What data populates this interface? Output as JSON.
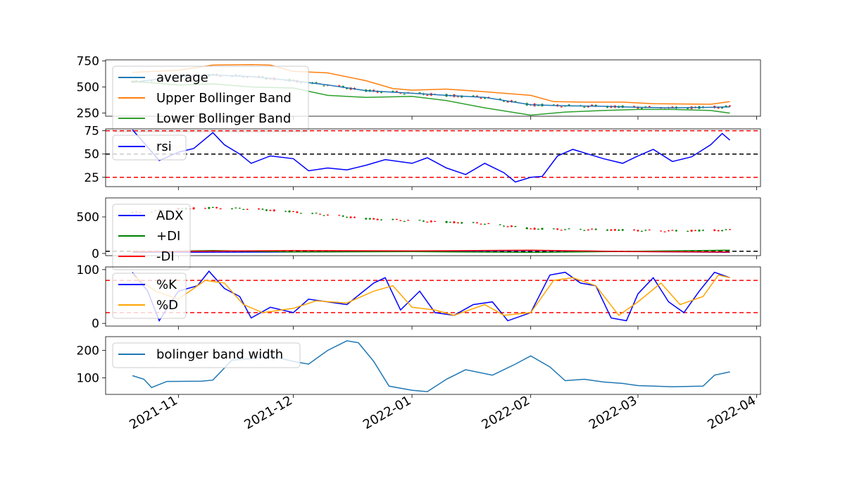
{
  "x_ticks": [
    "2021-11",
    "2021-12",
    "2022-01",
    "2022-02",
    "2022-03",
    "2022-04"
  ],
  "chart_data": [
    {
      "type": "line",
      "panel": "bollinger",
      "ylim": [
        220,
        760
      ],
      "y_ticks": [
        250,
        500,
        750
      ],
      "legend": {
        "placement": "upper-left",
        "entries": [
          "average",
          "Upper Bollinger Band",
          "Lower Bollinger Band"
        ]
      },
      "candles": "overlay",
      "series": [
        {
          "name": "average",
          "color": "#1f77b4",
          "points": [
            [
              "2021-10-20",
              545
            ],
            [
              "2021-11-01",
              600
            ],
            [
              "2021-11-10",
              615
            ],
            [
              "2021-11-20",
              600
            ],
            [
              "2021-12-01",
              560
            ],
            [
              "2021-12-10",
              520
            ],
            [
              "2021-12-20",
              465
            ],
            [
              "2022-01-01",
              440
            ],
            [
              "2022-01-10",
              420
            ],
            [
              "2022-01-20",
              400
            ],
            [
              "2022-02-01",
              330
            ],
            [
              "2022-02-10",
              320
            ],
            [
              "2022-02-20",
              315
            ],
            [
              "2022-03-01",
              305
            ],
            [
              "2022-03-10",
              300
            ],
            [
              "2022-03-20",
              305
            ],
            [
              "2022-03-25",
              310
            ]
          ]
        },
        {
          "name": "Upper Bollinger Band",
          "color": "#ff7f0e",
          "points": [
            [
              "2021-10-20",
              640
            ],
            [
              "2021-11-01",
              660
            ],
            [
              "2021-11-10",
              710
            ],
            [
              "2021-11-20",
              715
            ],
            [
              "2021-11-25",
              710
            ],
            [
              "2021-12-01",
              650
            ],
            [
              "2021-12-10",
              635
            ],
            [
              "2021-12-20",
              560
            ],
            [
              "2021-12-27",
              485
            ],
            [
              "2022-01-01",
              470
            ],
            [
              "2022-01-10",
              480
            ],
            [
              "2022-01-20",
              455
            ],
            [
              "2022-02-01",
              420
            ],
            [
              "2022-02-07",
              360
            ],
            [
              "2022-02-15",
              355
            ],
            [
              "2022-02-25",
              355
            ],
            [
              "2022-03-05",
              340
            ],
            [
              "2022-03-20",
              335
            ],
            [
              "2022-03-25",
              360
            ]
          ]
        },
        {
          "name": "Lower Bollinger Band",
          "color": "#2ca02c",
          "points": [
            [
              "2021-10-20",
              555
            ],
            [
              "2021-11-01",
              520
            ],
            [
              "2021-11-10",
              530
            ],
            [
              "2021-11-20",
              500
            ],
            [
              "2021-12-01",
              490
            ],
            [
              "2021-12-10",
              420
            ],
            [
              "2021-12-20",
              400
            ],
            [
              "2022-01-01",
              410
            ],
            [
              "2022-01-10",
              370
            ],
            [
              "2022-01-20",
              300
            ],
            [
              "2022-02-01",
              230
            ],
            [
              "2022-02-10",
              260
            ],
            [
              "2022-02-20",
              275
            ],
            [
              "2022-03-01",
              285
            ],
            [
              "2022-03-10",
              285
            ],
            [
              "2022-03-20",
              275
            ],
            [
              "2022-03-25",
              250
            ]
          ]
        }
      ]
    },
    {
      "type": "line",
      "panel": "rsi",
      "ylim": [
        15,
        77
      ],
      "y_ticks": [
        25,
        50,
        75
      ],
      "hlines": [
        {
          "y": 75,
          "color": "#ff0000"
        },
        {
          "y": 50,
          "color": "#000000"
        },
        {
          "y": 25,
          "color": "#ff0000"
        }
      ],
      "legend": {
        "placement": "upper-left",
        "entries": [
          "rsi"
        ]
      },
      "series": [
        {
          "name": "rsi",
          "color": "#0000ff",
          "points": [
            [
              "2021-10-20",
              76
            ],
            [
              "2021-10-23",
              62
            ],
            [
              "2021-10-27",
              43
            ],
            [
              "2021-11-01",
              52
            ],
            [
              "2021-11-05",
              56
            ],
            [
              "2021-11-10",
              73
            ],
            [
              "2021-11-13",
              60
            ],
            [
              "2021-11-17",
              50
            ],
            [
              "2021-11-20",
              40
            ],
            [
              "2021-11-25",
              48
            ],
            [
              "2021-12-01",
              45
            ],
            [
              "2021-12-05",
              32
            ],
            [
              "2021-12-10",
              35
            ],
            [
              "2021-12-15",
              33
            ],
            [
              "2021-12-20",
              38
            ],
            [
              "2021-12-25",
              44
            ],
            [
              "2022-01-01",
              40
            ],
            [
              "2022-01-05",
              46
            ],
            [
              "2022-01-10",
              35
            ],
            [
              "2022-01-15",
              28
            ],
            [
              "2022-01-20",
              40
            ],
            [
              "2022-01-25",
              30
            ],
            [
              "2022-01-28",
              20
            ],
            [
              "2022-02-01",
              25
            ],
            [
              "2022-02-04",
              26
            ],
            [
              "2022-02-08",
              48
            ],
            [
              "2022-02-12",
              55
            ],
            [
              "2022-02-16",
              50
            ],
            [
              "2022-02-20",
              45
            ],
            [
              "2022-02-25",
              40
            ],
            [
              "2022-03-01",
              48
            ],
            [
              "2022-03-05",
              55
            ],
            [
              "2022-03-10",
              42
            ],
            [
              "2022-03-15",
              47
            ],
            [
              "2022-03-20",
              60
            ],
            [
              "2022-03-23",
              72
            ],
            [
              "2022-03-25",
              65
            ]
          ]
        }
      ]
    },
    {
      "type": "line",
      "panel": "adx",
      "ylim": [
        -30,
        760
      ],
      "y_ticks": [
        0,
        500
      ],
      "hlines": [
        {
          "y": 30,
          "color": "#000000"
        }
      ],
      "legend": {
        "placement": "upper-left",
        "entries": [
          "ADX",
          "+DI",
          "-DI"
        ]
      },
      "candles": "overlay",
      "series": [
        {
          "name": "ADX",
          "color": "#0000ff",
          "points": [
            [
              "2021-10-20",
              15
            ],
            [
              "2021-12-01",
              20
            ],
            [
              "2022-01-01",
              30
            ],
            [
              "2022-02-01",
              40
            ],
            [
              "2022-03-01",
              25
            ],
            [
              "2022-03-25",
              15
            ]
          ]
        },
        {
          "name": "+DI",
          "color": "#008000",
          "points": [
            [
              "2021-10-20",
              20
            ],
            [
              "2021-11-10",
              40
            ],
            [
              "2021-12-01",
              20
            ],
            [
              "2022-01-01",
              25
            ],
            [
              "2022-02-01",
              15
            ],
            [
              "2022-03-01",
              30
            ],
            [
              "2022-03-25",
              45
            ]
          ]
        },
        {
          "name": "-DI",
          "color": "#ff0000",
          "points": [
            [
              "2021-10-20",
              25
            ],
            [
              "2021-12-01",
              40
            ],
            [
              "2022-01-01",
              35
            ],
            [
              "2022-02-01",
              45
            ],
            [
              "2022-03-01",
              25
            ],
            [
              "2022-03-25",
              20
            ]
          ]
        }
      ]
    },
    {
      "type": "line",
      "panel": "stochastic",
      "ylim": [
        -5,
        105
      ],
      "y_ticks": [
        0,
        100
      ],
      "hlines": [
        {
          "y": 80,
          "color": "#ff0000"
        },
        {
          "y": 20,
          "color": "#ff0000"
        }
      ],
      "legend": {
        "placement": "upper-left",
        "entries": [
          "%K",
          "%D"
        ]
      },
      "series": [
        {
          "name": "%K",
          "color": "#0000ff",
          "points": [
            [
              "2021-10-20",
              95
            ],
            [
              "2021-10-24",
              60
            ],
            [
              "2021-10-27",
              5
            ],
            [
              "2021-11-01",
              60
            ],
            [
              "2021-11-06",
              70
            ],
            [
              "2021-11-09",
              97
            ],
            [
              "2021-11-13",
              65
            ],
            [
              "2021-11-17",
              50
            ],
            [
              "2021-11-20",
              10
            ],
            [
              "2021-11-25",
              30
            ],
            [
              "2021-12-01",
              20
            ],
            [
              "2021-12-05",
              45
            ],
            [
              "2021-12-10",
              40
            ],
            [
              "2021-12-15",
              35
            ],
            [
              "2021-12-22",
              75
            ],
            [
              "2021-12-25",
              85
            ],
            [
              "2021-12-29",
              25
            ],
            [
              "2022-01-03",
              60
            ],
            [
              "2022-01-07",
              20
            ],
            [
              "2022-01-12",
              15
            ],
            [
              "2022-01-17",
              35
            ],
            [
              "2022-01-22",
              40
            ],
            [
              "2022-01-26",
              5
            ],
            [
              "2022-02-01",
              20
            ],
            [
              "2022-02-06",
              90
            ],
            [
              "2022-02-10",
              95
            ],
            [
              "2022-02-14",
              75
            ],
            [
              "2022-02-18",
              70
            ],
            [
              "2022-02-22",
              10
            ],
            [
              "2022-02-26",
              5
            ],
            [
              "2022-03-01",
              55
            ],
            [
              "2022-03-05",
              85
            ],
            [
              "2022-03-09",
              40
            ],
            [
              "2022-03-13",
              20
            ],
            [
              "2022-03-17",
              60
            ],
            [
              "2022-03-21",
              95
            ],
            [
              "2022-03-25",
              85
            ]
          ]
        },
        {
          "name": "%D",
          "color": "#ffa500",
          "points": [
            [
              "2021-10-20",
              90
            ],
            [
              "2021-10-26",
              60
            ],
            [
              "2021-11-01",
              45
            ],
            [
              "2021-11-08",
              80
            ],
            [
              "2021-11-13",
              75
            ],
            [
              "2021-11-18",
              35
            ],
            [
              "2021-11-23",
              20
            ],
            [
              "2021-12-01",
              28
            ],
            [
              "2021-12-07",
              42
            ],
            [
              "2021-12-15",
              38
            ],
            [
              "2021-12-22",
              60
            ],
            [
              "2021-12-27",
              70
            ],
            [
              "2022-01-01",
              30
            ],
            [
              "2022-01-07",
              25
            ],
            [
              "2022-01-12",
              15
            ],
            [
              "2022-01-20",
              35
            ],
            [
              "2022-01-25",
              15
            ],
            [
              "2022-02-01",
              20
            ],
            [
              "2022-02-07",
              80
            ],
            [
              "2022-02-12",
              85
            ],
            [
              "2022-02-18",
              70
            ],
            [
              "2022-02-24",
              15
            ],
            [
              "2022-03-01",
              40
            ],
            [
              "2022-03-07",
              75
            ],
            [
              "2022-03-12",
              35
            ],
            [
              "2022-03-18",
              50
            ],
            [
              "2022-03-22",
              90
            ],
            [
              "2022-03-25",
              85
            ]
          ]
        }
      ]
    },
    {
      "type": "line",
      "panel": "bandwidth",
      "ylim": [
        40,
        250
      ],
      "y_ticks": [
        100,
        200
      ],
      "legend": {
        "placement": "upper-left",
        "entries": [
          "bolinger band width"
        ]
      },
      "series": [
        {
          "name": "bolinger band width",
          "color": "#1f77b4",
          "points": [
            [
              "2021-10-20",
              108
            ],
            [
              "2021-10-23",
              95
            ],
            [
              "2021-10-25",
              65
            ],
            [
              "2021-10-29",
              87
            ],
            [
              "2021-11-07",
              88
            ],
            [
              "2021-11-10",
              92
            ],
            [
              "2021-11-15",
              165
            ],
            [
              "2021-11-20",
              170
            ],
            [
              "2021-11-25",
              180
            ],
            [
              "2021-12-01",
              160
            ],
            [
              "2021-12-05",
              150
            ],
            [
              "2021-12-10",
              200
            ],
            [
              "2021-12-15",
              235
            ],
            [
              "2021-12-18",
              228
            ],
            [
              "2021-12-22",
              160
            ],
            [
              "2021-12-26",
              70
            ],
            [
              "2022-01-01",
              55
            ],
            [
              "2022-01-05",
              50
            ],
            [
              "2022-01-10",
              95
            ],
            [
              "2022-01-15",
              130
            ],
            [
              "2022-01-22",
              110
            ],
            [
              "2022-01-28",
              150
            ],
            [
              "2022-02-01",
              180
            ],
            [
              "2022-02-06",
              140
            ],
            [
              "2022-02-10",
              90
            ],
            [
              "2022-02-15",
              95
            ],
            [
              "2022-02-20",
              85
            ],
            [
              "2022-02-25",
              80
            ],
            [
              "2022-03-01",
              72
            ],
            [
              "2022-03-10",
              68
            ],
            [
              "2022-03-18",
              70
            ],
            [
              "2022-03-21",
              110
            ],
            [
              "2022-03-25",
              122
            ]
          ]
        }
      ]
    }
  ]
}
